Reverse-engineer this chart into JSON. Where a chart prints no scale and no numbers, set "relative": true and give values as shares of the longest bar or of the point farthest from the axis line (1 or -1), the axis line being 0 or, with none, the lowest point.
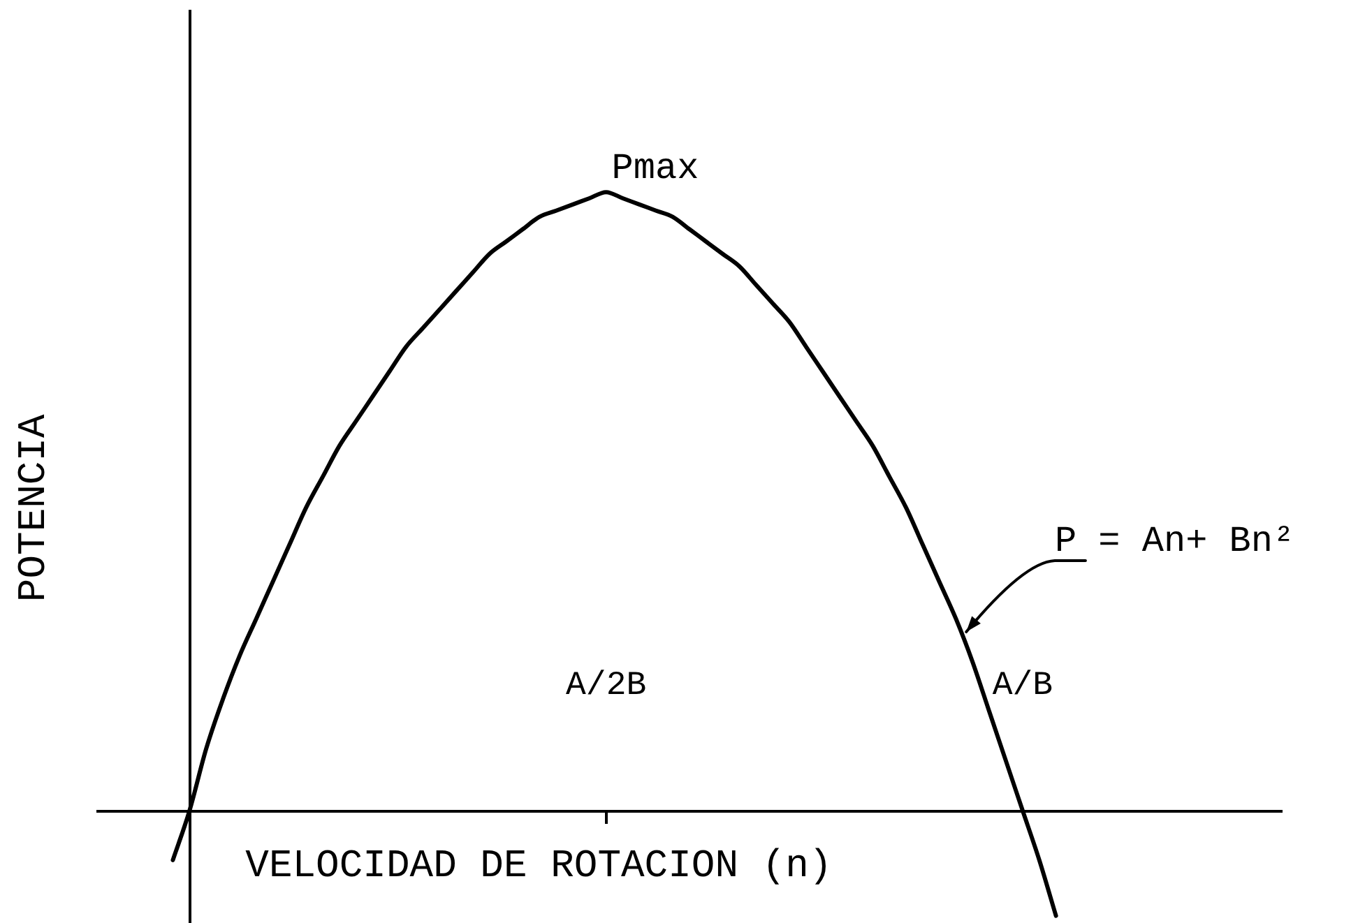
{
  "chart_data": {
    "type": "line",
    "xlabel": "VELOCIDAD DE ROTACION (n)",
    "ylabel": "POTENCIA",
    "relative": true,
    "categories": [
      null,
      null,
      null,
      null,
      null,
      null,
      null,
      null,
      null,
      null,
      null,
      null,
      null,
      null,
      null,
      null,
      null,
      null,
      null,
      null,
      null,
      null,
      null,
      null,
      null,
      null,
      "A/2B",
      null,
      null,
      null,
      null,
      null,
      null,
      null,
      null,
      null,
      null,
      null,
      null,
      null,
      null,
      null,
      null,
      null,
      null,
      null,
      null,
      null,
      null,
      null,
      null,
      "A/B",
      null,
      null
    ],
    "series": [
      {
        "color": "#000000",
        "values": [
          -0.08,
          0,
          0.1,
          0.18,
          0.25,
          0.31,
          0.37,
          0.43,
          0.49,
          0.54,
          0.59,
          0.63,
          0.67,
          0.71,
          0.75,
          0.78,
          0.81,
          0.84,
          0.87,
          0.9,
          0.92,
          0.94,
          0.96,
          0.97,
          0.98,
          0.99,
          1,
          0.99,
          0.98,
          0.97,
          0.96,
          0.94,
          0.92,
          0.9,
          0.88,
          0.85,
          0.82,
          0.79,
          0.75,
          0.71,
          0.67,
          0.63,
          0.59,
          0.54,
          0.49,
          0.43,
          0.37,
          0.31,
          0.24,
          0.16,
          0.08,
          0,
          -0.08,
          -0.17
        ]
      }
    ],
    "annotations": [
      {
        "text": "Pmax",
        "x": "A/2B",
        "y": 1
      },
      "P = An+ Bn²"
    ]
  }
}
